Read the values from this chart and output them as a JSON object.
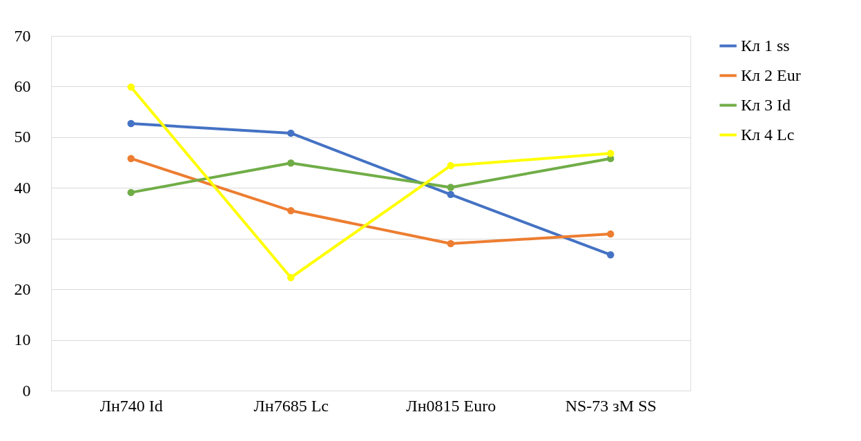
{
  "chart_data": {
    "type": "line",
    "categories": [
      "Лн740 Id",
      "Лн7685 Lc",
      "Лн0815 Euro",
      "NS-73 зM SS"
    ],
    "series": [
      {
        "name": "Кл 1 ss",
        "color": "#4472c4",
        "values": [
          52.7,
          50.8,
          38.7,
          26.8
        ]
      },
      {
        "name": "Кл 2 Eur",
        "color": "#ed7d31",
        "values": [
          45.8,
          35.5,
          29.0,
          30.9
        ]
      },
      {
        "name": "Кл 3 Id",
        "color": "#70ad47",
        "values": [
          39.1,
          44.9,
          40.1,
          45.8
        ]
      },
      {
        "name": "Кл 4 Lc",
        "color": "#ffff00",
        "values": [
          59.9,
          22.3,
          44.4,
          46.8
        ]
      }
    ],
    "ylim": [
      0,
      70
    ],
    "yticks": [
      0,
      10,
      20,
      30,
      40,
      50,
      60,
      70
    ],
    "grid": "y",
    "legend": "right",
    "marker": "circle",
    "line_style": "solid"
  }
}
